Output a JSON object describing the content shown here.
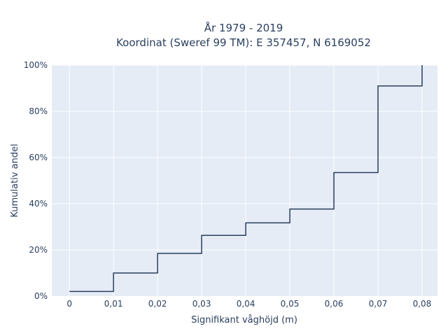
{
  "chart_data": {
    "type": "line",
    "title_line1": "År 1979 - 2019",
    "title_line2": "Koordinat (Sweref 99 TM): E 357457, N 6169052",
    "xlabel": "Signifikant våghöjd (m)",
    "ylabel": "Kumulativ andel",
    "x_ticks": [
      "0",
      "0,01",
      "0,02",
      "0,03",
      "0,04",
      "0,05",
      "0,06",
      "0,07",
      "0,08"
    ],
    "x_tick_values": [
      0,
      0.01,
      0.02,
      0.03,
      0.04,
      0.05,
      0.06,
      0.07,
      0.08
    ],
    "y_ticks": [
      "0%",
      "20%",
      "40%",
      "60%",
      "80%",
      "100%"
    ],
    "y_tick_values": [
      0,
      20,
      40,
      60,
      80,
      100
    ],
    "xlim": [
      -0.004,
      0.0835
    ],
    "ylim": [
      0,
      100
    ],
    "grid": true,
    "line_shape": "step (hv)",
    "series": [
      {
        "x": [
          0,
          0.01,
          0.02,
          0.03,
          0.04,
          0.05,
          0.06,
          0.07,
          0.08,
          0.08
        ],
        "y": [
          2,
          10,
          18.5,
          26.3,
          31.7,
          37.7,
          53.5,
          91,
          91,
          100
        ]
      }
    ],
    "colors": {
      "line": "#2a3f5f",
      "plot_bg": "#e5ecf6",
      "grid": "#ffffff",
      "text": "#2a3f5f"
    }
  }
}
